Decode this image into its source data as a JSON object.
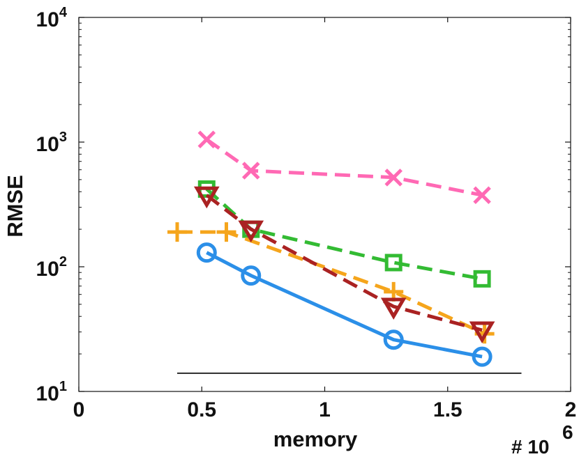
{
  "chart_data": {
    "type": "line",
    "title": "",
    "xlabel": "memory",
    "ylabel": "RMSE",
    "x_multiplier_label": "# 10",
    "x_multiplier_exponent": "6",
    "xlim": [
      0,
      2
    ],
    "ylim": [
      10,
      10000
    ],
    "yscale": "log",
    "x_ticks": [
      {
        "value": 0,
        "label": "0"
      },
      {
        "value": 0.5,
        "label": "0.5"
      },
      {
        "value": 1,
        "label": "1"
      },
      {
        "value": 1.5,
        "label": "1.5"
      },
      {
        "value": 2,
        "label": "2"
      }
    ],
    "y_ticks": [
      {
        "value": 10,
        "base": "10",
        "exp": "1"
      },
      {
        "value": 100,
        "base": "10",
        "exp": "2"
      },
      {
        "value": 1000,
        "base": "10",
        "exp": "3"
      },
      {
        "value": 10000,
        "base": "10",
        "exp": "4"
      }
    ],
    "reference_line": {
      "x": [
        0.4,
        1.8
      ],
      "y": 14,
      "color": "#000000"
    },
    "series": [
      {
        "name": "pink-x",
        "color": "#ff69b4",
        "dash": "dashed",
        "marker": "x",
        "x": [
          0.52,
          0.7,
          1.28,
          1.64
        ],
        "y": [
          1050,
          590,
          520,
          375
        ]
      },
      {
        "name": "green-square",
        "color": "#33bb33",
        "dash": "dashed",
        "marker": "square",
        "x": [
          0.52,
          0.7,
          1.28,
          1.64
        ],
        "y": [
          420,
          200,
          108,
          80
        ]
      },
      {
        "name": "orange-plus",
        "color": "#f5a51c",
        "dash": "dashed",
        "marker": "plus",
        "x": [
          0.4,
          0.6,
          1.28,
          1.65
        ],
        "y": [
          190,
          190,
          63,
          29
        ]
      },
      {
        "name": "red-triangle",
        "color": "#aa2222",
        "dash": "dashed",
        "marker": "triangle-down",
        "x": [
          0.52,
          0.7,
          1.28,
          1.64
        ],
        "y": [
          375,
          200,
          48,
          31
        ]
      },
      {
        "name": "blue-circle",
        "color": "#2b8fe8",
        "dash": "solid",
        "marker": "circle",
        "x": [
          0.52,
          0.7,
          1.28,
          1.64
        ],
        "y": [
          130,
          85,
          26,
          19
        ]
      }
    ]
  }
}
